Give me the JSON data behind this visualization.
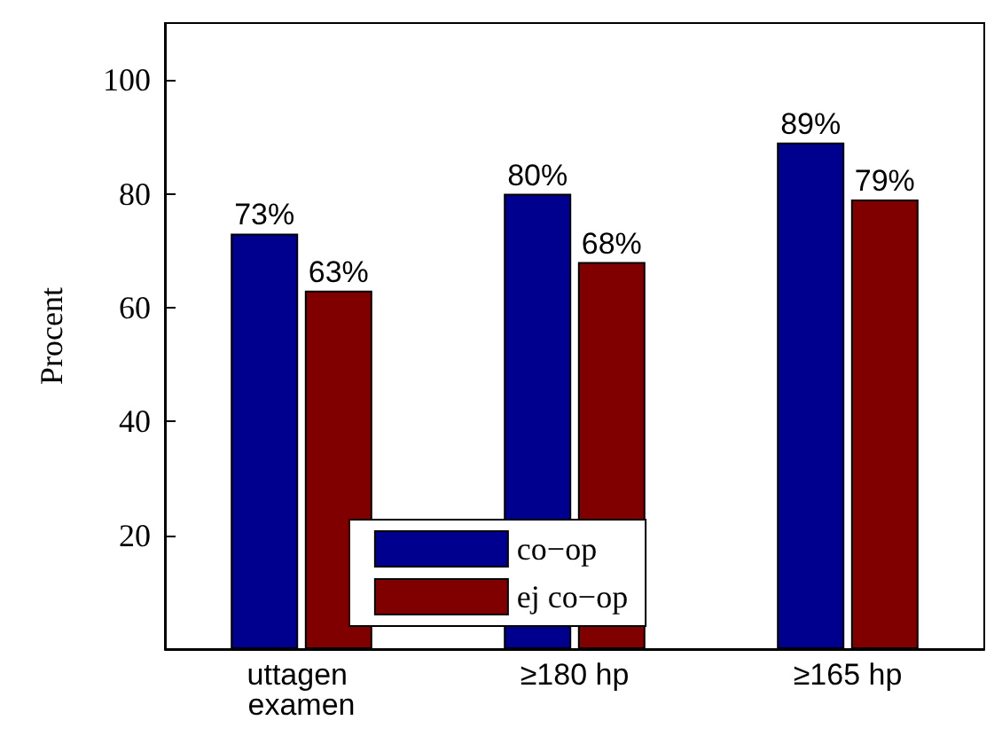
{
  "chart_data": {
    "type": "bar",
    "ylabel": "Procent",
    "categories": [
      "uttagen examen",
      "≥180 hp",
      "≥165 hp"
    ],
    "series": [
      {
        "name": "co−op",
        "color": "#00008f",
        "values": [
          73,
          80,
          89
        ],
        "value_labels": [
          "73%",
          "80%",
          "89%"
        ]
      },
      {
        "name": "ej co−op",
        "color": "#800000",
        "values": [
          63,
          68,
          79
        ],
        "value_labels": [
          "63%",
          "68%",
          "79%"
        ]
      }
    ],
    "ylim": [
      0,
      110
    ],
    "yticks": [
      20,
      40,
      60,
      80,
      100
    ],
    "grid": false,
    "legend": "bottom"
  }
}
